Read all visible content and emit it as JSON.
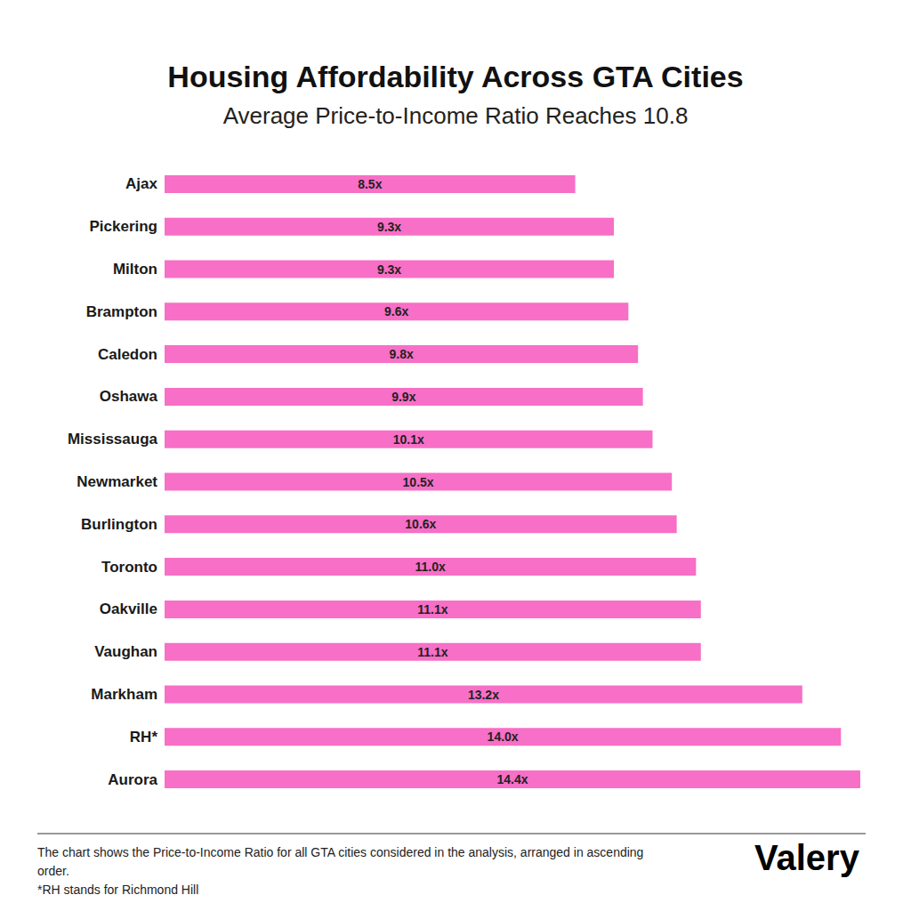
{
  "chart_data": {
    "type": "bar",
    "orientation": "horizontal",
    "title": "Housing Affordability Across GTA Cities",
    "subtitle": "Average Price-to-Income Ratio Reaches 10.8",
    "categories": [
      "Ajax",
      "Pickering",
      "Milton",
      "Brampton",
      "Caledon",
      "Oshawa",
      "Mississauga",
      "Newmarket",
      "Burlington",
      "Toronto",
      "Oakville",
      "Vaughan",
      "Markham",
      "RH*",
      "Aurora"
    ],
    "values": [
      8.5,
      9.3,
      9.3,
      9.6,
      9.8,
      9.9,
      10.1,
      10.5,
      10.6,
      11.0,
      11.1,
      11.1,
      13.2,
      14.0,
      14.4
    ],
    "value_labels": [
      "8.5x",
      "9.3x",
      "9.3x",
      "9.6x",
      "9.8x",
      "9.9x",
      "10.1x",
      "10.5x",
      "10.6x",
      "11.0x",
      "11.1x",
      "11.1x",
      "13.2x",
      "14.0x",
      "14.4x"
    ],
    "color": "#f76fc6",
    "xlim": [
      0,
      14.4
    ],
    "grid": false,
    "data_labels": true,
    "tick_labels": "y",
    "notes": [
      "The chart shows the Price-to-Income Ratio for all GTA cities considered in the analysis, arranged in ascending order.",
      "*RH stands for Richmond Hill"
    ],
    "logo": "Valery"
  }
}
